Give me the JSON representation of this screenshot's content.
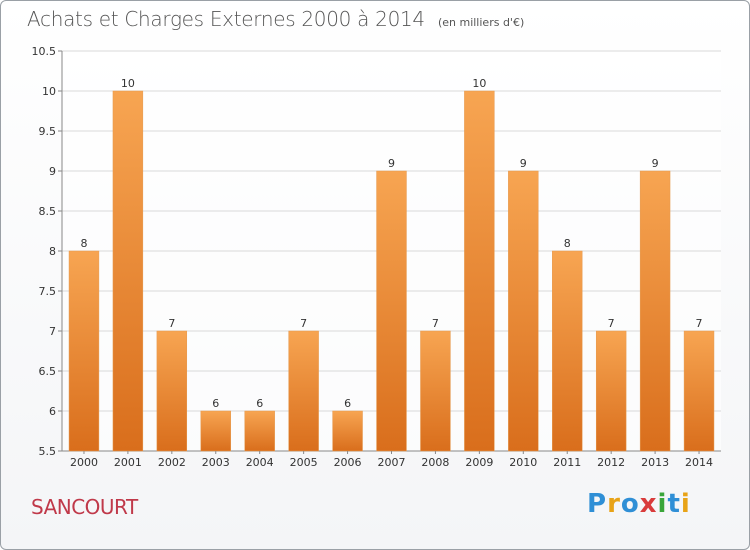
{
  "header": {
    "title": "Achats et Charges Externes 2000 à 2014",
    "unit": "(en milliers d'€)"
  },
  "footer": {
    "commune": "SANCOURT",
    "logo_text": "Proxiti"
  },
  "colors": {
    "bar_light": "#f7a552",
    "bar_dark": "#d96e1c",
    "commune": "#c0394a",
    "grid": "#d9d9d9"
  },
  "chart_data": {
    "type": "bar",
    "title": "Achats et Charges Externes 2000 à 2014",
    "subtitle": "(en milliers d'€)",
    "categories": [
      "2000",
      "2001",
      "2002",
      "2003",
      "2004",
      "2005",
      "2006",
      "2007",
      "2008",
      "2009",
      "2010",
      "2011",
      "2012",
      "2013",
      "2014"
    ],
    "values": [
      8,
      10,
      7,
      6,
      6,
      7,
      6,
      9,
      7,
      10,
      9,
      8,
      7,
      9,
      7
    ],
    "data_labels": [
      "8",
      "10",
      "7",
      "6",
      "6",
      "7",
      "6",
      "9",
      "7",
      "10",
      "9",
      "8",
      "7",
      "9",
      "7"
    ],
    "ylim": [
      5.5,
      10.5
    ],
    "yticks": [
      "5.5",
      "6",
      "6.5",
      "7",
      "7.5",
      "8",
      "8.5",
      "9",
      "9.5",
      "10",
      "10.5"
    ],
    "xlabel": "",
    "ylabel": "",
    "grid": true,
    "legend": "none"
  }
}
